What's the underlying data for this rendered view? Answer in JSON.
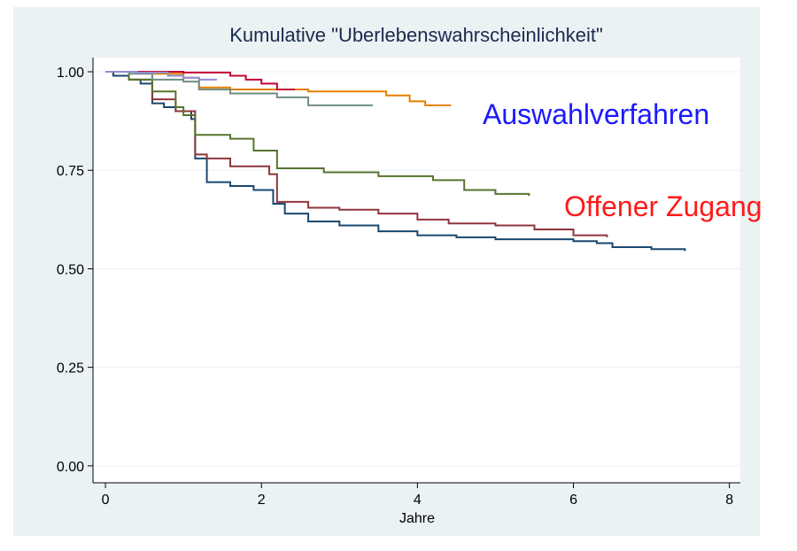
{
  "chart_data": {
    "type": "line",
    "step": true,
    "title": "Kumulative \"Uberlebenswahrscheinlichkeit\"",
    "xlabel": "Jahre",
    "xlim": [
      -0.16,
      8.14
    ],
    "ylim": [
      -0.043,
      1.036
    ],
    "xticks": [
      0,
      2,
      4,
      6,
      8
    ],
    "yticks": [
      {
        "value": 0,
        "label": "0.00"
      },
      {
        "value": 0.25,
        "label": "0.25"
      },
      {
        "value": 0.5,
        "label": "0.50"
      },
      {
        "value": 0.75,
        "label": "0.75"
      },
      {
        "value": 1,
        "label": "1.00"
      }
    ],
    "grid": true,
    "annotations": [
      {
        "text": "Auswahlverfahren",
        "color": "#1a1aff"
      },
      {
        "text": "Offener Zugang",
        "color": "#ff1a1a"
      }
    ],
    "series": [
      {
        "color": "#1a476f",
        "x": [
          0,
          0.1,
          0.3,
          0.45,
          0.6,
          0.75,
          0.9,
          1.1,
          1.15,
          1.3,
          1.6,
          1.9,
          2.15,
          2.3,
          2.6,
          3.0,
          3.5,
          4.0,
          4.5,
          5.0,
          6.0,
          6.3,
          6.5,
          7.0,
          7.43
        ],
        "values": [
          1.0,
          0.99,
          0.98,
          0.97,
          0.92,
          0.91,
          0.9,
          0.88,
          0.78,
          0.72,
          0.71,
          0.7,
          0.665,
          0.64,
          0.62,
          0.61,
          0.595,
          0.585,
          0.58,
          0.575,
          0.57,
          0.565,
          0.555,
          0.55,
          0.545
        ]
      },
      {
        "color": "#90353b",
        "x": [
          0,
          0.3,
          0.6,
          0.9,
          1.15,
          1.3,
          1.6,
          2.1,
          2.2,
          2.6,
          3.0,
          3.5,
          4.0,
          4.4,
          5.0,
          5.5,
          6.0,
          6.43
        ],
        "values": [
          1.0,
          0.98,
          0.93,
          0.9,
          0.79,
          0.78,
          0.76,
          0.74,
          0.67,
          0.655,
          0.65,
          0.64,
          0.625,
          0.615,
          0.61,
          0.6,
          0.585,
          0.58
        ]
      },
      {
        "color": "#55752f",
        "x": [
          0,
          0.3,
          0.6,
          0.9,
          1.0,
          1.15,
          1.6,
          1.9,
          2.2,
          2.8,
          3.5,
          4.2,
          4.6,
          5.0,
          5.43
        ],
        "values": [
          1.0,
          0.98,
          0.95,
          0.91,
          0.89,
          0.84,
          0.83,
          0.8,
          0.755,
          0.745,
          0.735,
          0.725,
          0.7,
          0.69,
          0.685
        ]
      },
      {
        "color": "#e37e00",
        "x": [
          0,
          0.6,
          1.0,
          1.2,
          1.6,
          2.6,
          3.6,
          3.9,
          4.1,
          4.43
        ],
        "values": [
          1.0,
          0.995,
          0.985,
          0.96,
          0.955,
          0.95,
          0.94,
          0.925,
          0.915,
          0.915
        ]
      },
      {
        "color": "#6e8e84",
        "x": [
          0,
          0.3,
          0.6,
          1.0,
          1.2,
          1.6,
          2.2,
          2.6,
          3.43
        ],
        "values": [
          1.0,
          0.995,
          0.98,
          0.975,
          0.955,
          0.945,
          0.935,
          0.915,
          0.915
        ]
      },
      {
        "color": "#c10534",
        "x": [
          0,
          1.0,
          1.6,
          1.8,
          2.0,
          2.2,
          2.43
        ],
        "values": [
          1.0,
          0.998,
          0.99,
          0.98,
          0.97,
          0.955,
          0.955
        ]
      },
      {
        "color": "#938dd2",
        "x": [
          0,
          0.4,
          0.8,
          1.0,
          1.2,
          1.43
        ],
        "values": [
          1.0,
          0.998,
          0.99,
          0.985,
          0.98,
          0.98
        ]
      }
    ]
  }
}
